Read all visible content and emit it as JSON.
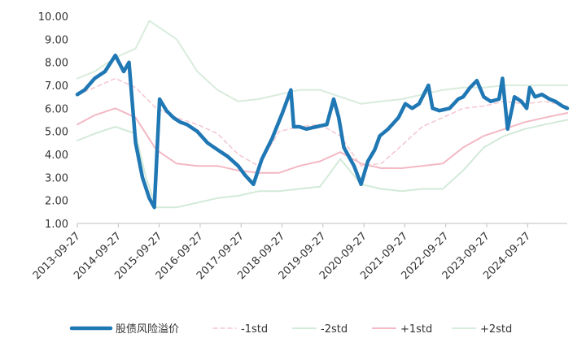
{
  "chart_data": {
    "type": "line",
    "title": "",
    "xlabel": "",
    "ylabel": "",
    "ylim": [
      1.0,
      10.0
    ],
    "y_ticks": [
      "10.00",
      "9.00",
      "8.00",
      "7.00",
      "6.00",
      "5.00",
      "4.00",
      "3.00",
      "2.00",
      "1.00"
    ],
    "x_ticks": [
      "2013-09-27",
      "2014-09-27",
      "2015-09-27",
      "2016-09-27",
      "2017-09-27",
      "2018-09-27",
      "2019-09-27",
      "2020-09-27",
      "2021-09-27",
      "2022-09-27",
      "2023-09-27",
      "2024-09-27"
    ],
    "legend_position": "bottom",
    "grid": false,
    "series": [
      {
        "name": "股债风险溢价",
        "color": "#1f77b4",
        "style": "thick-solid",
        "x": [
          "2013-09-27",
          "2013-12-01",
          "2014-03-01",
          "2014-06-01",
          "2014-09-01",
          "2014-11-15",
          "2015-01-01",
          "2015-03-01",
          "2015-05-01",
          "2015-07-01",
          "2015-08-15",
          "2015-10-01",
          "2015-12-01",
          "2016-02-01",
          "2016-04-01",
          "2016-06-01",
          "2016-09-01",
          "2016-12-01",
          "2017-03-01",
          "2017-06-01",
          "2017-09-01",
          "2017-11-01",
          "2018-01-15",
          "2018-04-01",
          "2018-07-01",
          "2018-10-01",
          "2018-12-15",
          "2019-01-10",
          "2019-03-01",
          "2019-05-01",
          "2019-08-01",
          "2019-11-01",
          "2020-01-01",
          "2020-02-15",
          "2020-04-01",
          "2020-07-01",
          "2020-09-01",
          "2020-11-01",
          "2021-01-01",
          "2021-02-15",
          "2021-05-01",
          "2021-08-01",
          "2021-10-01",
          "2021-12-01",
          "2022-02-01",
          "2022-04-25",
          "2022-06-01",
          "2022-08-01",
          "2022-10-31",
          "2023-01-15",
          "2023-03-01",
          "2023-05-01",
          "2023-07-01",
          "2023-09-01",
          "2023-11-01",
          "2024-01-15",
          "2024-02-15",
          "2024-04-01",
          "2024-06-01",
          "2024-08-01",
          "2024-09-18",
          "2024-10-15",
          "2024-12-01",
          "2025-02-01",
          "2025-04-10",
          "2025-06-01",
          "2025-08-01",
          "2025-09-15"
        ],
        "values": [
          6.6,
          6.8,
          7.3,
          7.6,
          8.3,
          7.6,
          8.0,
          4.5,
          3.0,
          2.1,
          1.7,
          6.4,
          5.9,
          5.6,
          5.4,
          5.3,
          5.0,
          4.5,
          4.2,
          3.9,
          3.5,
          3.1,
          2.7,
          3.8,
          4.7,
          5.8,
          6.8,
          5.2,
          5.2,
          5.1,
          5.2,
          5.3,
          6.4,
          5.6,
          4.3,
          3.5,
          2.7,
          3.7,
          4.2,
          4.8,
          5.1,
          5.6,
          6.2,
          6.0,
          6.2,
          7.0,
          6.0,
          5.9,
          6.0,
          6.4,
          6.5,
          6.9,
          7.2,
          6.5,
          6.3,
          6.4,
          7.3,
          5.1,
          6.5,
          6.3,
          6.0,
          6.9,
          6.5,
          6.6,
          6.4,
          6.3,
          6.1,
          6.0
        ]
      },
      {
        "name": "-1std",
        "color": "#f4c6cf",
        "style": "dashed",
        "x": [
          "2013-09-27",
          "2014-03-01",
          "2014-09-01",
          "2015-03-01",
          "2015-09-01",
          "2016-03-01",
          "2016-09-01",
          "2017-03-01",
          "2017-09-01",
          "2018-03-01",
          "2018-09-01",
          "2019-03-01",
          "2019-09-01",
          "2020-03-01",
          "2020-09-01",
          "2021-03-01",
          "2021-09-01",
          "2022-03-01",
          "2022-09-01",
          "2023-03-01",
          "2023-09-01",
          "2024-03-01",
          "2024-09-01",
          "2025-03-01",
          "2025-09-15"
        ],
        "values": [
          6.6,
          6.9,
          7.3,
          6.9,
          6.0,
          5.6,
          5.3,
          4.9,
          4.0,
          3.5,
          5.0,
          5.2,
          5.3,
          4.8,
          3.5,
          3.6,
          4.4,
          5.2,
          5.6,
          6.0,
          6.1,
          6.3,
          6.2,
          6.3,
          6.1
        ]
      },
      {
        "name": "-2std",
        "color": "#d2ead8",
        "style": "solid",
        "x": [
          "2013-09-27",
          "2014-03-01",
          "2014-09-01",
          "2015-03-01",
          "2015-06-01",
          "2015-09-01",
          "2016-03-01",
          "2016-09-01",
          "2017-03-01",
          "2017-09-01",
          "2018-03-01",
          "2018-09-01",
          "2019-03-01",
          "2019-09-01",
          "2020-03-01",
          "2020-09-01",
          "2021-03-01",
          "2021-09-01",
          "2022-03-01",
          "2022-09-01",
          "2023-03-01",
          "2023-09-01",
          "2024-03-01",
          "2024-09-01",
          "2025-03-01",
          "2025-09-15"
        ],
        "values": [
          4.6,
          4.9,
          5.2,
          4.9,
          3.0,
          1.7,
          1.7,
          1.9,
          2.1,
          2.2,
          2.4,
          2.4,
          2.5,
          2.6,
          3.8,
          2.7,
          2.5,
          2.4,
          2.5,
          2.5,
          3.3,
          4.3,
          4.8,
          5.1,
          5.3,
          5.5
        ]
      },
      {
        "name": "+1std",
        "color": "#f3b8c4",
        "style": "solid",
        "x": [
          "2013-09-27",
          "2014-03-01",
          "2014-09-01",
          "2015-03-01",
          "2015-09-01",
          "2016-03-01",
          "2016-09-01",
          "2017-03-01",
          "2017-09-01",
          "2018-03-01",
          "2018-09-01",
          "2019-03-01",
          "2019-09-01",
          "2020-03-01",
          "2020-09-01",
          "2021-03-01",
          "2021-09-01",
          "2022-03-01",
          "2022-09-01",
          "2023-03-01",
          "2023-09-01",
          "2024-03-01",
          "2024-09-01",
          "2025-03-01",
          "2025-09-15"
        ],
        "values": [
          5.3,
          5.7,
          6.0,
          5.6,
          4.2,
          3.6,
          3.5,
          3.5,
          3.3,
          3.2,
          3.2,
          3.5,
          3.7,
          4.1,
          3.6,
          3.4,
          3.4,
          3.5,
          3.6,
          4.3,
          4.8,
          5.1,
          5.4,
          5.6,
          5.8
        ]
      },
      {
        "name": "+2std",
        "color": "#d8ecdc",
        "style": "solid",
        "x": [
          "2013-09-27",
          "2014-03-01",
          "2014-09-01",
          "2015-03-01",
          "2015-07-01",
          "2015-09-01",
          "2016-03-01",
          "2016-09-01",
          "2017-03-01",
          "2017-09-01",
          "2018-03-01",
          "2018-09-01",
          "2019-03-01",
          "2019-09-01",
          "2020-03-01",
          "2020-09-01",
          "2021-03-01",
          "2021-09-01",
          "2022-03-01",
          "2022-09-01",
          "2023-03-01",
          "2023-09-01",
          "2024-03-01",
          "2024-09-01",
          "2025-03-01",
          "2025-09-15"
        ],
        "values": [
          7.3,
          7.6,
          8.2,
          8.6,
          9.8,
          9.6,
          9.0,
          7.6,
          6.8,
          6.3,
          6.4,
          6.6,
          6.8,
          6.8,
          6.5,
          6.2,
          6.3,
          6.4,
          6.6,
          6.8,
          6.9,
          6.9,
          7.0,
          7.0,
          7.0,
          7.0
        ]
      }
    ]
  }
}
